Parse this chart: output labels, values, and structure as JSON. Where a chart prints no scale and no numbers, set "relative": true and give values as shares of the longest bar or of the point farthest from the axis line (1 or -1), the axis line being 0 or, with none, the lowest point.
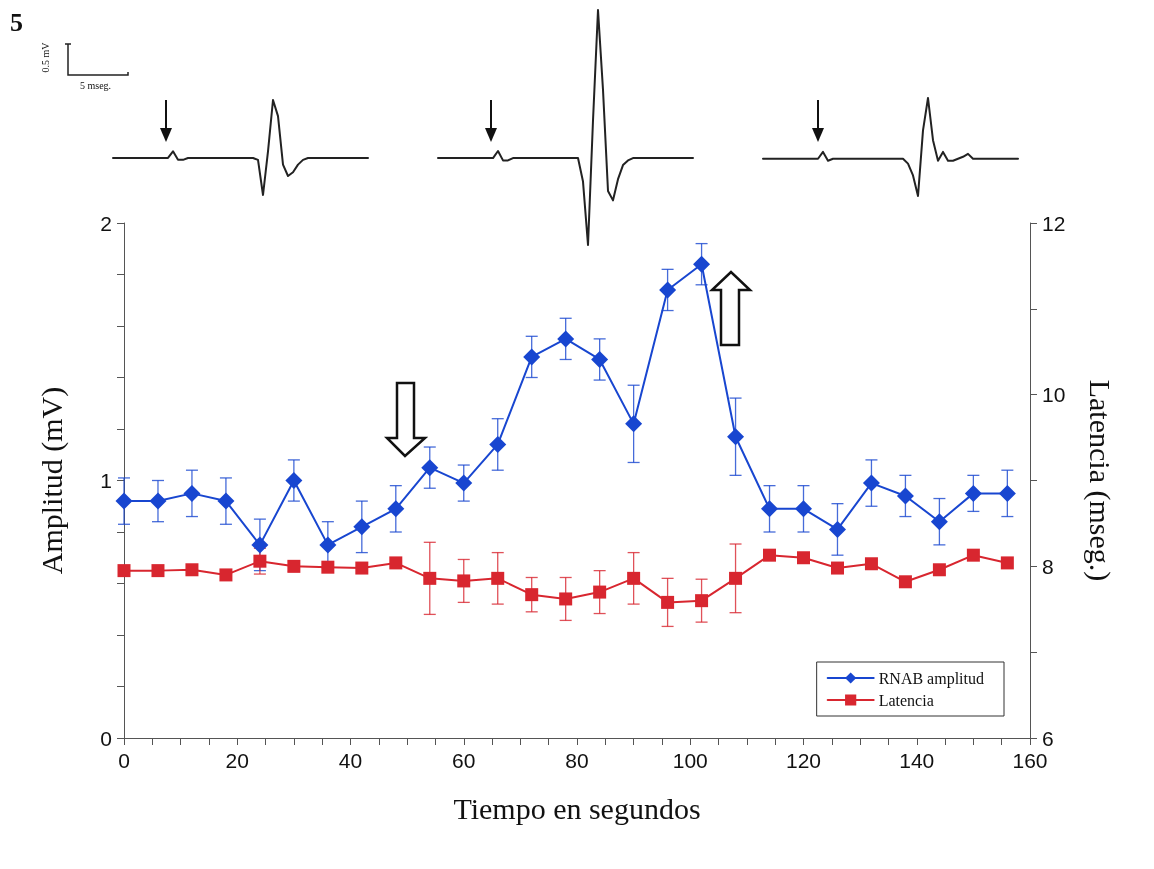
{
  "chart_data": [
    {
      "type": "line",
      "relative": true,
      "color": "#222222",
      "marker": "none",
      "annotations": [
        "5",
        "0.5 mV",
        "5 mseg."
      ],
      "categories": [
        null,
        null,
        null,
        null,
        null,
        null,
        null,
        null,
        null,
        null,
        null,
        null,
        null,
        null,
        null,
        null,
        null,
        null,
        null,
        null,
        null,
        null,
        null,
        null,
        null,
        null,
        null,
        null,
        null,
        null,
        null,
        null,
        null,
        null,
        null,
        null,
        null,
        null,
        null,
        null,
        null,
        null,
        null,
        null,
        null,
        null,
        null,
        null,
        null,
        null,
        null,
        null
      ],
      "values": [
        0.39,
        0.39,
        0.39,
        0.39,
        0.39,
        0.39,
        0.39,
        0.39,
        0.39,
        0.39,
        0.39,
        0.39,
        0.46,
        0.37,
        0.37,
        0.39,
        0.39,
        0.39,
        0.39,
        0.39,
        0.39,
        0.39,
        0.39,
        0.39,
        0.39,
        0.39,
        0.39,
        0.39,
        0.39,
        0.37,
        0,
        0.46,
        1,
        0.83,
        0.32,
        0.2,
        0.24,
        0.32,
        0.37,
        0.39,
        0.39,
        0.39,
        0.39,
        0.39,
        0.39,
        0.39,
        0.39,
        0.39,
        0.39,
        0.39,
        0.39,
        0.39
      ]
    },
    {
      "type": "line",
      "relative": true,
      "color": "#222222",
      "marker": "none",
      "categories": [
        null,
        null,
        null,
        null,
        null,
        null,
        null,
        null,
        null,
        null,
        null,
        null,
        null,
        null,
        null,
        null,
        null,
        null,
        null,
        null,
        null,
        null,
        null,
        null,
        null,
        null,
        null,
        null,
        null,
        null,
        null,
        null,
        null,
        null,
        null,
        null,
        null,
        null,
        null,
        null,
        null,
        null,
        null,
        null,
        null,
        null,
        null,
        null,
        null,
        null,
        null,
        null
      ],
      "values": [
        0.37,
        0.37,
        0.37,
        0.37,
        0.37,
        0.37,
        0.37,
        0.37,
        0.37,
        0.37,
        0.37,
        0.37,
        0.4,
        0.36,
        0.36,
        0.37,
        0.37,
        0.37,
        0.37,
        0.37,
        0.37,
        0.37,
        0.37,
        0.37,
        0.37,
        0.37,
        0.37,
        0.37,
        0.37,
        0.27,
        0,
        0.53,
        1,
        0.66,
        0.23,
        0.19,
        0.28,
        0.34,
        0.36,
        0.37,
        0.37,
        0.37,
        0.37,
        0.37,
        0.37,
        0.37,
        0.37,
        0.37,
        0.37,
        0.37,
        0.37,
        0.37
      ]
    },
    {
      "type": "line",
      "relative": true,
      "color": "#222222",
      "marker": "none",
      "categories": [
        null,
        null,
        null,
        null,
        null,
        null,
        null,
        null,
        null,
        null,
        null,
        null,
        null,
        null,
        null,
        null,
        null,
        null,
        null,
        null,
        null,
        null,
        null,
        null,
        null,
        null,
        null,
        null,
        null,
        null,
        null,
        null,
        null,
        null,
        null,
        null,
        null,
        null,
        null,
        null,
        null,
        null,
        null,
        null,
        null,
        null,
        null,
        null,
        null,
        null,
        null,
        null
      ],
      "values": [
        0.38,
        0.38,
        0.38,
        0.38,
        0.38,
        0.38,
        0.38,
        0.38,
        0.38,
        0.38,
        0.38,
        0.38,
        0.45,
        0.36,
        0.38,
        0.38,
        0.38,
        0.38,
        0.38,
        0.38,
        0.38,
        0.38,
        0.38,
        0.38,
        0.38,
        0.38,
        0.38,
        0.38,
        0.38,
        0.33,
        0.21,
        0,
        0.67,
        1,
        0.57,
        0.36,
        0.45,
        0.36,
        0.36,
        0.38,
        0.4,
        0.43,
        0.38,
        0.38,
        0.38,
        0.38,
        0.38,
        0.38,
        0.38,
        0.38,
        0.38,
        0.38
      ]
    },
    {
      "type": "line",
      "xlabel": "Tiempo en segundos",
      "ylabel": "Amplitud (mV)",
      "y2label": "Latencia (mseg.)",
      "x": [
        0,
        6,
        12,
        18,
        24,
        30,
        36,
        42,
        48,
        54,
        60,
        66,
        72,
        78,
        84,
        90,
        96,
        102,
        108,
        114,
        120,
        126,
        132,
        138,
        144,
        150,
        156
      ],
      "series": [
        {
          "name": "RNAB amplitud",
          "color": "#1846d0",
          "marker": "diamond",
          "values": [
            0.92,
            0.92,
            0.95,
            0.92,
            0.75,
            1.0,
            0.75,
            0.82,
            0.89,
            1.05,
            0.99,
            1.14,
            1.48,
            1.55,
            1.47,
            1.22,
            1.74,
            1.84,
            1.17,
            0.89,
            0.89,
            0.81,
            0.99,
            0.94,
            0.84,
            0.95,
            0.95
          ],
          "errors": [
            0.09,
            0.08,
            0.09,
            0.09,
            0.1,
            0.08,
            0.09,
            0.1,
            0.09,
            0.08,
            0.07,
            0.1,
            0.08,
            0.08,
            0.08,
            0.15,
            0.08,
            0.08,
            0.15,
            0.09,
            0.09,
            0.1,
            0.09,
            0.08,
            0.09,
            0.07,
            0.09
          ]
        },
        {
          "name": "Latencia",
          "color": "#d8262f",
          "marker": "square",
          "axis": "y2",
          "values": [
            7.95,
            7.95,
            7.96,
            7.9,
            8.06,
            8.0,
            7.99,
            7.98,
            8.04,
            7.86,
            7.83,
            7.86,
            7.67,
            7.62,
            7.7,
            7.86,
            7.58,
            7.6,
            7.86,
            8.13,
            8.1,
            7.98,
            8.03,
            7.82,
            7.96,
            8.13,
            8.04
          ],
          "errors": [
            null,
            null,
            null,
            null,
            0.15,
            0.06,
            null,
            null,
            null,
            0.42,
            0.25,
            0.3,
            0.2,
            0.25,
            0.25,
            0.3,
            0.28,
            0.25,
            0.4,
            null,
            null,
            null,
            null,
            null,
            null,
            null,
            null
          ]
        }
      ],
      "xlim": [
        0,
        160
      ],
      "xticks": [
        0,
        {
          "value": 5,
          "label": null
        },
        {
          "value": 10,
          "label": null
        },
        {
          "value": 15,
          "label": null
        },
        20,
        {
          "value": 25,
          "label": null
        },
        {
          "value": 30,
          "label": null
        },
        {
          "value": 35,
          "label": null
        },
        40,
        {
          "value": 45,
          "label": null
        },
        {
          "value": 50,
          "label": null
        },
        {
          "value": 55,
          "label": null
        },
        60,
        {
          "value": 65,
          "label": null
        },
        {
          "value": 70,
          "label": null
        },
        {
          "value": 75,
          "label": null
        },
        80,
        {
          "value": 85,
          "label": null
        },
        {
          "value": 90,
          "label": null
        },
        {
          "value": 95,
          "label": null
        },
        100,
        {
          "value": 105,
          "label": null
        },
        {
          "value": 110,
          "label": null
        },
        {
          "value": 115,
          "label": null
        },
        120,
        {
          "value": 125,
          "label": null
        },
        {
          "value": 130,
          "label": null
        },
        {
          "value": 135,
          "label": null
        },
        140,
        {
          "value": 145,
          "label": null
        },
        {
          "value": 150,
          "label": null
        },
        {
          "value": 155,
          "label": null
        },
        160
      ],
      "ylim": [
        0,
        2
      ],
      "yticks": [
        0,
        {
          "value": 0.2,
          "label": null
        },
        {
          "value": 0.4,
          "label": null
        },
        {
          "value": 0.6,
          "label": null
        },
        {
          "value": 0.8,
          "label": null
        },
        1,
        {
          "value": 1.2,
          "label": null
        },
        {
          "value": 1.4,
          "label": null
        },
        {
          "value": 1.6,
          "label": null
        },
        {
          "value": 1.8,
          "label": null
        },
        2
      ],
      "y2lim": [
        6,
        12
      ],
      "y2ticks": [
        6,
        {
          "value": 7,
          "label": null
        },
        8,
        {
          "value": 9,
          "label": null
        },
        10,
        {
          "value": 11,
          "label": null
        },
        12
      ],
      "grid": false,
      "legend": "bottom right",
      "line_style": "solid"
    }
  ]
}
